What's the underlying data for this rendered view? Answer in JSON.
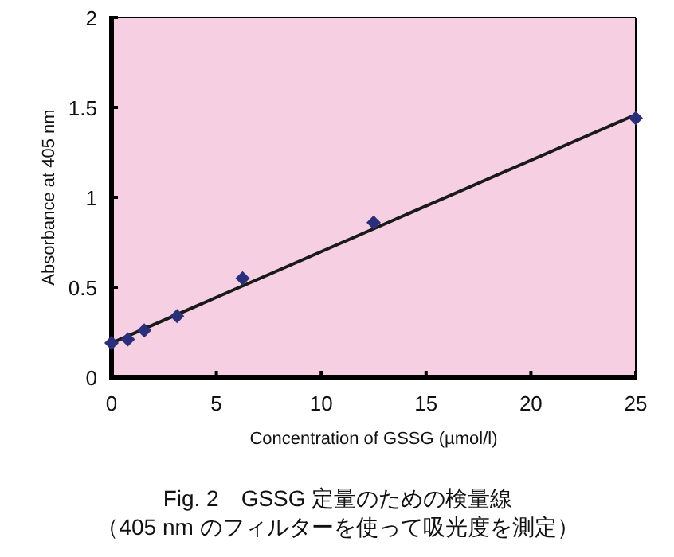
{
  "chart_data": {
    "type": "scatter",
    "title": "Fig. 2　GSSG 定量のための検量線",
    "subtitle": "（405 nm のフィルターを使って吸光度を測定）",
    "xlabel": "Concentration of GSSG (µmol/l)",
    "ylabel": "Absorbance at 405 nm",
    "x": [
      0,
      0.78,
      1.56,
      3.125,
      6.25,
      12.5,
      25
    ],
    "series": [
      {
        "color": "#2b2f7a",
        "marker": "diamond",
        "values": [
          0.19,
          0.21,
          0.26,
          0.34,
          0.55,
          0.86,
          1.44
        ]
      },
      {
        "type": "line",
        "color": "#1a1a1a",
        "marker": "none",
        "line_style": "solid",
        "x": [
          0,
          25
        ],
        "values": [
          0.19,
          1.46
        ]
      }
    ],
    "xlim": [
      0,
      25
    ],
    "xticks": [
      0,
      5,
      10,
      15,
      20,
      25
    ],
    "ylim": [
      0,
      2
    ],
    "yticks": [
      0,
      0.5,
      1,
      1.5,
      2
    ],
    "grid": false
  }
}
